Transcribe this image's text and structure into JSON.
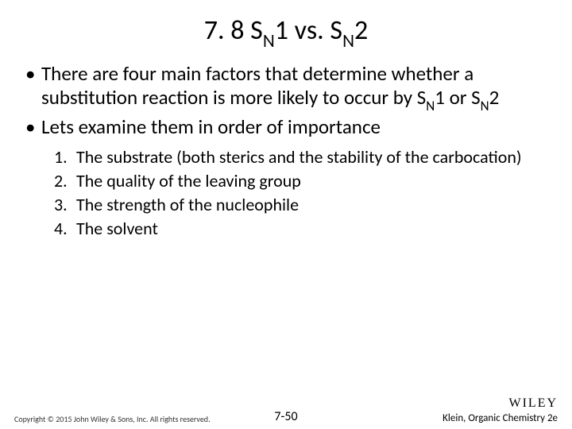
{
  "title_prefix": "7. 8 S",
  "title_mid1": "1 vs. S",
  "title_sub": "N",
  "title_suffix": "2",
  "bullet1_a": "There are four main factors that determine whether a substitution reaction is more likely to occur by S",
  "bullet1_b": "1 or S",
  "bullet1_c": "2",
  "bullet2": "Lets examine them in order of importance",
  "item1": "The substrate (both sterics and the stability of the carbocation)",
  "item2": "The quality of the leaving group",
  "item3": "The strength of the nucleophile",
  "item4": "The solvent",
  "copyright": "Copyright © 2015 John Wiley & Sons, Inc. All rights reserved.",
  "pagenum": "7-50",
  "logo": "WILEY",
  "book": "Klein, Organic Chemistry 2e"
}
